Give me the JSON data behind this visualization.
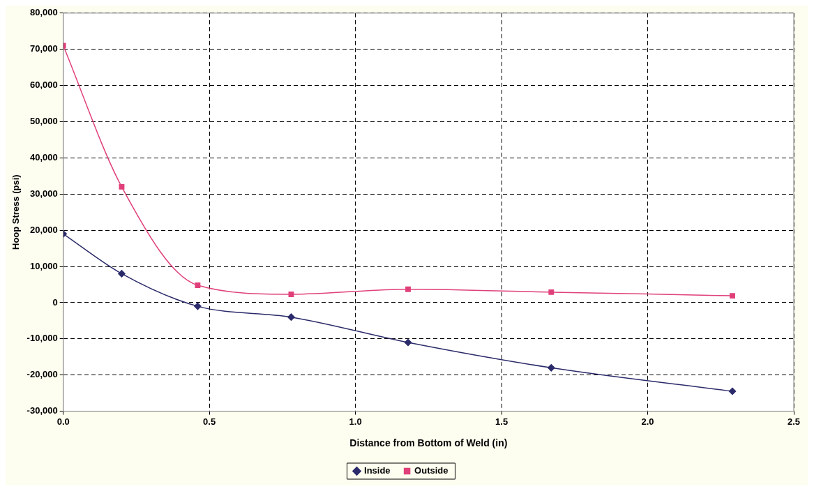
{
  "chart_data": {
    "type": "line",
    "xlabel": "Distance from Bottom of Weld (in)",
    "ylabel": "Hoop Stress (psi)",
    "xlim": [
      0,
      2.5
    ],
    "xticks": [
      {
        "value": 0,
        "label": "0.0"
      },
      {
        "value": 0.5,
        "label": "0.5"
      },
      {
        "value": 1,
        "label": "1.0"
      },
      {
        "value": 1.5,
        "label": "1.5"
      },
      {
        "value": 2,
        "label": "2.0"
      },
      {
        "value": 2.5,
        "label": "2.5"
      }
    ],
    "ylim": [
      -30000,
      80000
    ],
    "yticks": [
      {
        "value": -30000,
        "label": "-30,000"
      },
      {
        "value": -20000,
        "label": "-20,000"
      },
      {
        "value": -10000,
        "label": "-10,000"
      },
      {
        "value": 0,
        "label": "0"
      },
      {
        "value": 10000,
        "label": "10,000"
      },
      {
        "value": 20000,
        "label": "20,000"
      },
      {
        "value": 30000,
        "label": "30,000"
      },
      {
        "value": 40000,
        "label": "40,000"
      },
      {
        "value": 50000,
        "label": "50,000"
      },
      {
        "value": 60000,
        "label": "60,000"
      },
      {
        "value": 70000,
        "label": "70,000"
      },
      {
        "value": 80000,
        "label": "80,000"
      }
    ],
    "grid": true,
    "legend": "bottom",
    "series": [
      {
        "name": "Inside",
        "color": "#2b2b6b",
        "marker": "diamond",
        "x": [
          0,
          0.2,
          0.46,
          0.78,
          1.18,
          1.67,
          2.29
        ],
        "values": [
          19000,
          8000,
          -1000,
          -4000,
          -11000,
          -18000,
          -24500
        ]
      },
      {
        "name": "Outside",
        "color": "#e0407a",
        "marker": "square",
        "x": [
          0,
          0.2,
          0.46,
          0.78,
          1.18,
          1.67,
          2.29
        ],
        "values": [
          71000,
          32000,
          4800,
          2300,
          3700,
          2900,
          1900
        ]
      }
    ]
  }
}
